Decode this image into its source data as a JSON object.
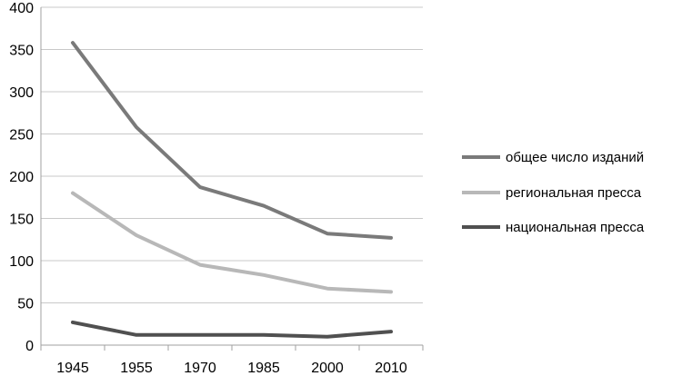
{
  "chart_data": {
    "type": "line",
    "title": "",
    "xlabel": "",
    "ylabel": "",
    "categories": [
      "1945",
      "1955",
      "1970",
      "1985",
      "2000",
      "2010"
    ],
    "ylim": [
      0,
      400
    ],
    "yticks": [
      0,
      50,
      100,
      150,
      200,
      250,
      300,
      350,
      400
    ],
    "grid": true,
    "legend_position": "right",
    "series": [
      {
        "name": "общее число изданий",
        "color": "#7a7a7a",
        "values": [
          358,
          258,
          187,
          165,
          132,
          127
        ]
      },
      {
        "name": "региональная пресса",
        "color": "#b8b8b8",
        "values": [
          180,
          130,
          95,
          83,
          67,
          63
        ]
      },
      {
        "name": "национальная пресса",
        "color": "#505050",
        "values": [
          27,
          12,
          12,
          12,
          10,
          16
        ]
      }
    ]
  }
}
